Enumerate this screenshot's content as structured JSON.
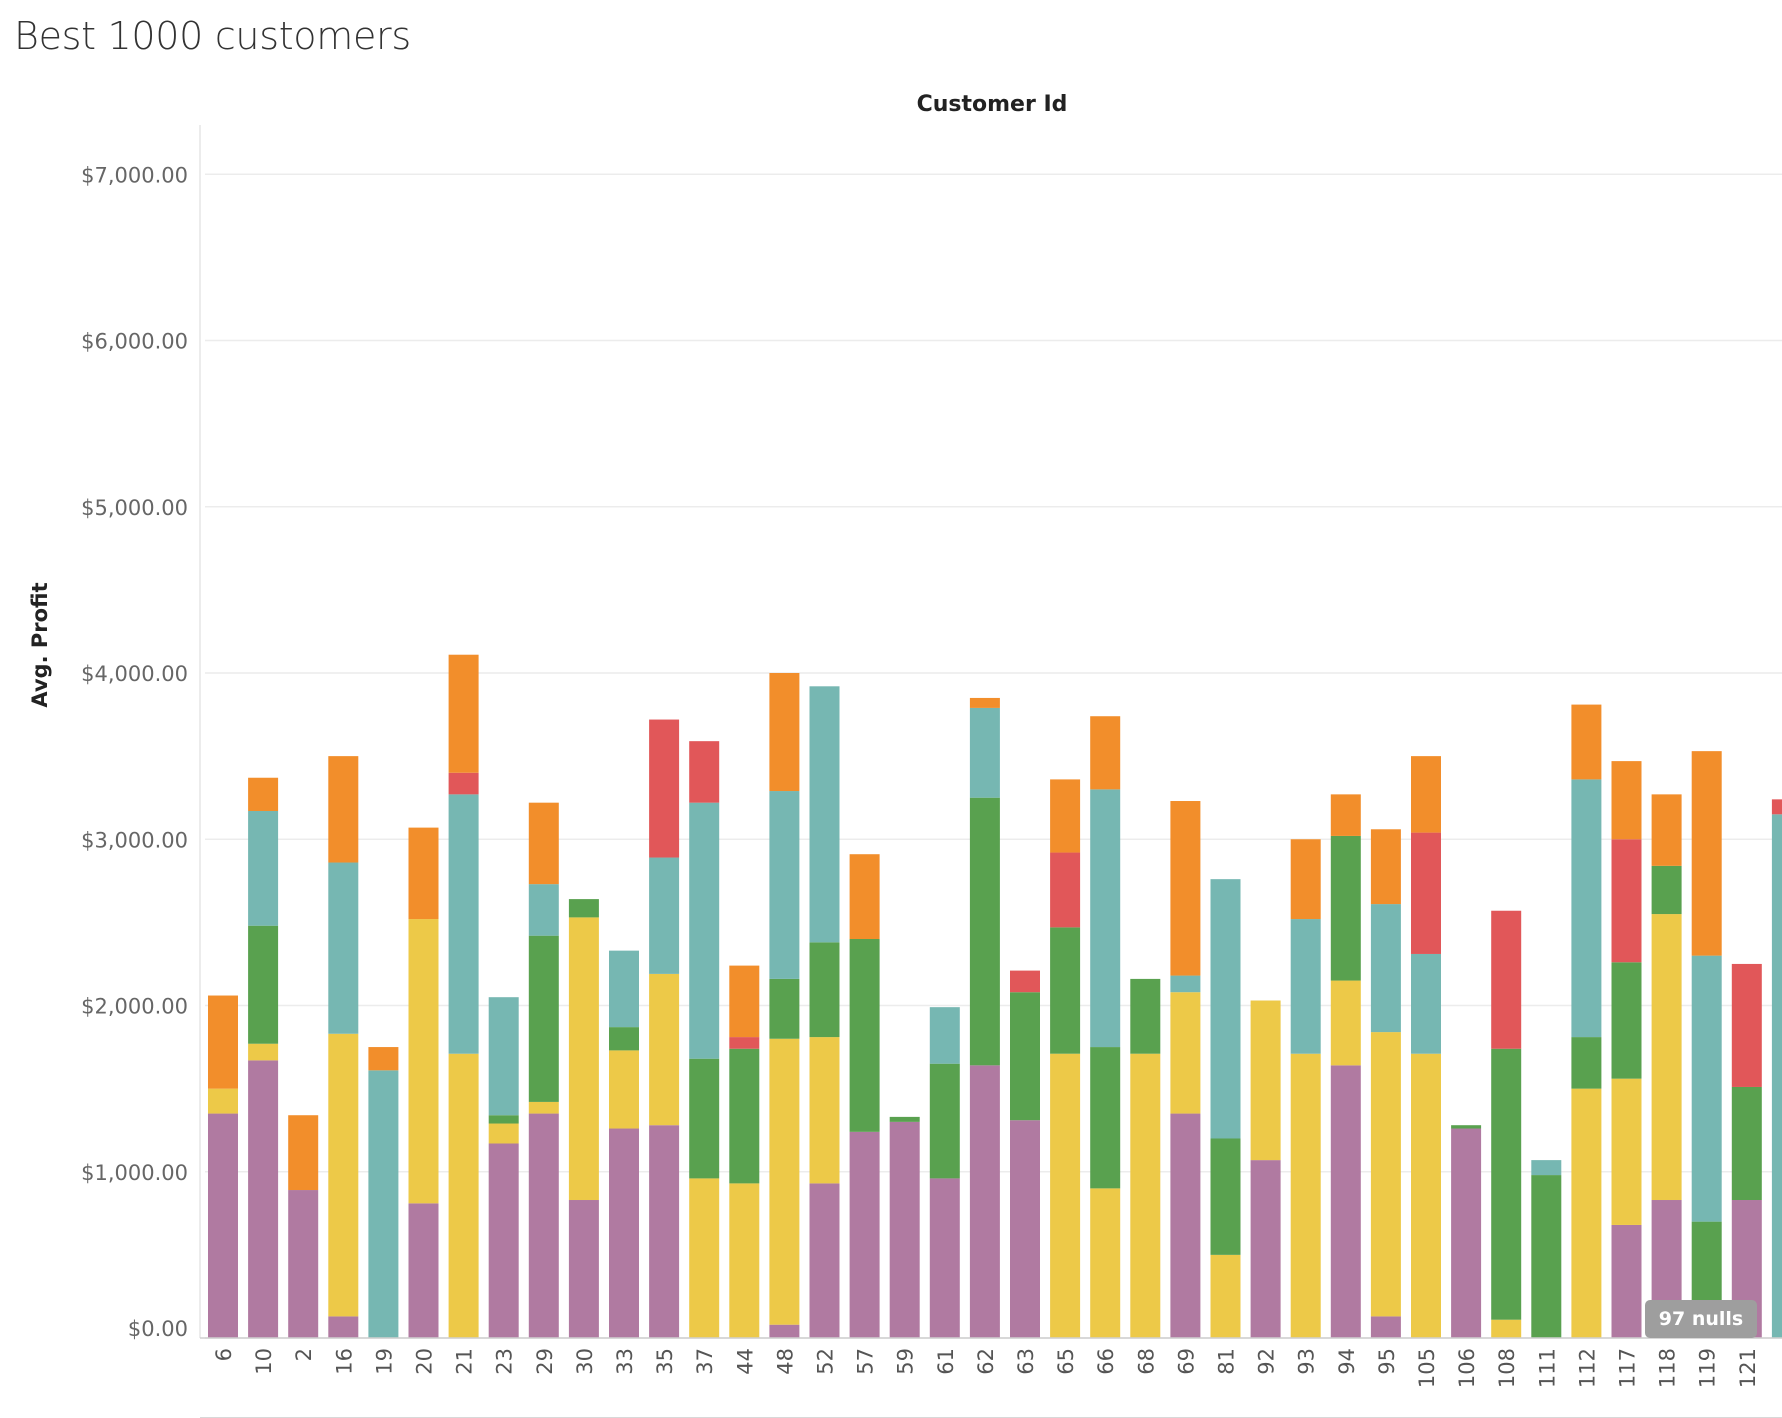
{
  "title": "Best 1000 customers",
  "column_header": "Customer Id",
  "y_axis_label": "Avg. Profit",
  "nulls_badge": "97 nulls",
  "chart_data": {
    "type": "bar",
    "stacked": true,
    "title": "Best 1000 customers",
    "xlabel": "Customer Id",
    "ylabel": "Avg. Profit",
    "ylim": [
      0,
      7300
    ],
    "yticks": [
      0,
      1000,
      2000,
      3000,
      4000,
      5000,
      6000,
      7000
    ],
    "ytick_labels": [
      "$0.00",
      "$1,000.00",
      "$2,000.00",
      "$3,000.00",
      "$4,000.00",
      "$5,000.00",
      "$6,000.00",
      "$7,000.00"
    ],
    "grid": true,
    "categories": [
      "6",
      "10",
      "2",
      "16",
      "19",
      "20",
      "21",
      "23",
      "29",
      "30",
      "33",
      "35",
      "37",
      "44",
      "48",
      "52",
      "57",
      "59",
      "61",
      "62",
      "63",
      "65",
      "66",
      "68",
      "69",
      "81",
      "92",
      "93",
      "94",
      "95",
      "105",
      "106",
      "108",
      "111",
      "112",
      "117",
      "118",
      "119",
      "121"
    ],
    "series": [
      {
        "color": "#b07aa1",
        "values": [
          1350,
          1670,
          890,
          130,
          0,
          810,
          0,
          1170,
          1350,
          830,
          1260,
          1280,
          0,
          0,
          80,
          930,
          1240,
          1300,
          960,
          1640,
          1310,
          0,
          0,
          0,
          1350,
          0,
          1070,
          0,
          1640,
          130,
          0,
          1260,
          0,
          0,
          0,
          680,
          830,
          0,
          830
        ]
      },
      {
        "color": "#edc948",
        "values": [
          150,
          100,
          0,
          1700,
          0,
          1710,
          1710,
          120,
          70,
          1700,
          470,
          910,
          960,
          930,
          1720,
          880,
          0,
          0,
          0,
          0,
          0,
          1710,
          900,
          1710,
          730,
          500,
          960,
          1710,
          510,
          1710,
          1710,
          0,
          110,
          0,
          1500,
          880,
          1720,
          0,
          0
        ]
      },
      {
        "color": "#59a14f",
        "values": [
          0,
          710,
          0,
          0,
          0,
          0,
          0,
          50,
          1000,
          110,
          140,
          0,
          720,
          810,
          360,
          570,
          1160,
          30,
          690,
          1610,
          770,
          760,
          850,
          450,
          0,
          700,
          0,
          0,
          870,
          0,
          0,
          20,
          1630,
          980,
          310,
          700,
          290,
          700,
          680
        ]
      },
      {
        "color": "#76b7b2",
        "values": [
          0,
          690,
          0,
          1030,
          1610,
          0,
          1560,
          710,
          310,
          0,
          460,
          700,
          1540,
          0,
          1130,
          1540,
          0,
          0,
          340,
          540,
          0,
          0,
          1550,
          0,
          100,
          1560,
          0,
          810,
          0,
          770,
          600,
          0,
          0,
          90,
          1550,
          0,
          0,
          1600,
          0
        ]
      },
      {
        "color": "#e15759",
        "values": [
          0,
          0,
          0,
          0,
          0,
          0,
          130,
          0,
          0,
          0,
          0,
          830,
          370,
          70,
          0,
          0,
          0,
          0,
          0,
          0,
          130,
          450,
          0,
          0,
          0,
          0,
          0,
          0,
          0,
          0,
          730,
          0,
          830,
          0,
          0,
          740,
          0,
          0,
          740
        ]
      },
      {
        "color": "#f28e2b",
        "values": [
          560,
          200,
          450,
          640,
          140,
          550,
          710,
          0,
          490,
          0,
          0,
          0,
          0,
          430,
          710,
          0,
          510,
          0,
          0,
          60,
          0,
          440,
          440,
          0,
          1050,
          0,
          0,
          480,
          250,
          450,
          460,
          0,
          0,
          0,
          450,
          470,
          430,
          1230,
          0
        ]
      }
    ]
  }
}
